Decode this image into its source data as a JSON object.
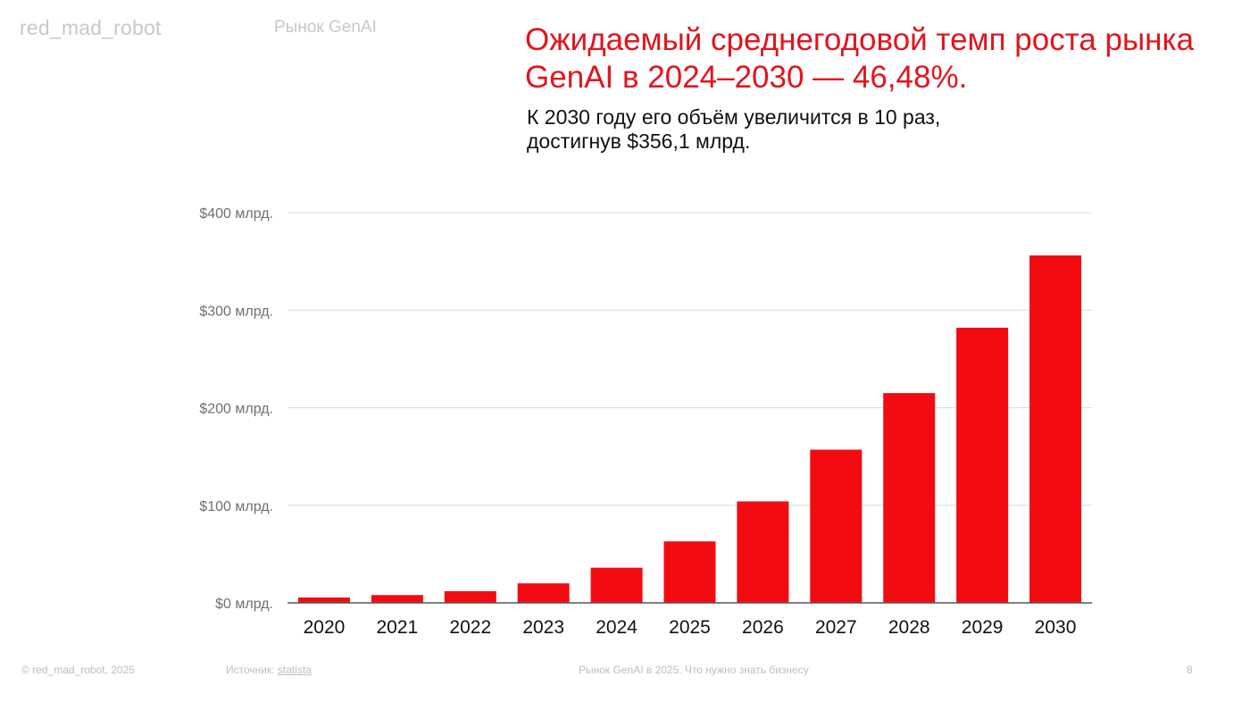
{
  "header": {
    "logo": "red_mad_robot",
    "section": "Рынок GenAI"
  },
  "headline": {
    "line1": "Ожидаемый среднегодовой темп роста рынка",
    "line2": "GenAI в 2024–2030 — 46,48%."
  },
  "subhead": {
    "line1": "К 2030 году его объём увеличится в 10 раз,",
    "line2": "достигнув $356,1 млрд."
  },
  "chart_data": {
    "type": "bar",
    "categories": [
      "2020",
      "2021",
      "2022",
      "2023",
      "2024",
      "2025",
      "2026",
      "2027",
      "2028",
      "2029",
      "2030"
    ],
    "values": [
      5.5,
      8,
      12,
      20,
      36,
      63,
      104,
      157,
      215,
      282,
      356.1
    ],
    "ylim": [
      0,
      400
    ],
    "yticks": [
      0,
      100,
      200,
      300,
      400
    ],
    "ytick_labels": [
      "$0 млрд.",
      "$100 млрд.",
      "$200 млрд.",
      "$300 млрд.",
      "$400 млрд."
    ],
    "grid": true,
    "bar_color": "#f40b12"
  },
  "footer": {
    "copyright": "© red_mad_robot, 2025",
    "source_label": "Источник: ",
    "source_link": "statista",
    "report": "Рынок GenAI в 2025. Что нужно знать бизнесу",
    "page": "8"
  },
  "colors": {
    "accent": "#e3141c",
    "muted": "#c8c8c8",
    "grid": "#dcdcdc",
    "axis_text": "#6f6f6f"
  }
}
